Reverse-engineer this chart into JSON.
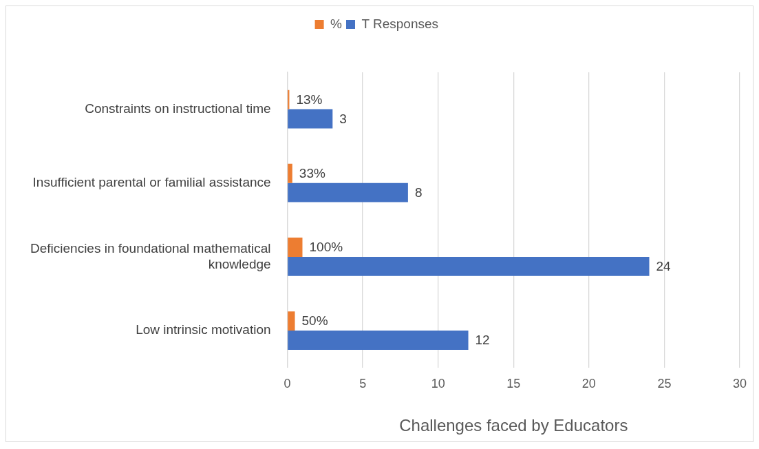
{
  "chart_data": {
    "type": "bar",
    "orientation": "horizontal",
    "xlabel": "Challenges faced by Educators",
    "categories": [
      "Constraints on instructional time",
      "Insufficient parental or familial assistance",
      "Deficiencies in foundational mathematical knowledge",
      "Low intrinsic motivation"
    ],
    "series": [
      {
        "name": "%",
        "color": "#ed7d31",
        "values": [
          0.13,
          0.33,
          1,
          0.5
        ],
        "value_labels": [
          "13%",
          "33%",
          "100%",
          "50%"
        ]
      },
      {
        "name": "T Responses",
        "color": "#4472c4",
        "values": [
          3,
          8,
          24,
          12
        ],
        "value_labels": [
          "3",
          "8",
          "24",
          "12"
        ]
      }
    ],
    "xlim": [
      0,
      30
    ],
    "xticks": [
      0,
      5,
      10,
      15,
      20,
      25,
      30
    ],
    "grid": "x",
    "legend": "top"
  }
}
